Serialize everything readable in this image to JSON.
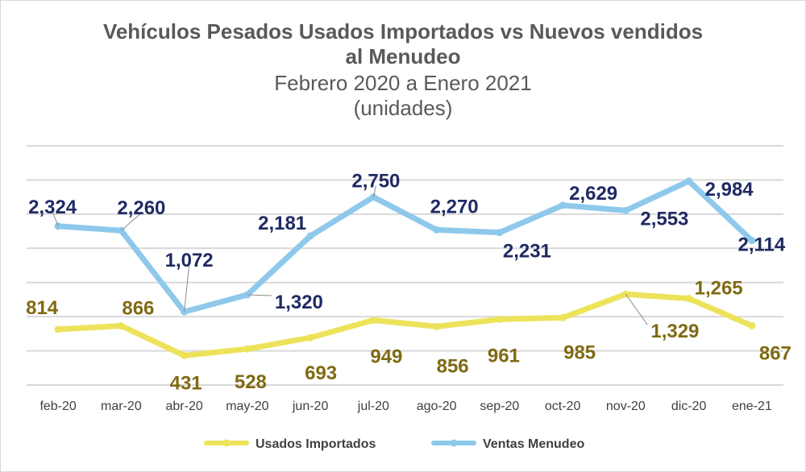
{
  "chart_data": {
    "type": "line",
    "title_line1": "Vehículos Pesados Usados Importados vs Nuevos vendidos",
    "title_line2": "al Menudeo",
    "subtitle": "Febrero 2020 a Enero 2021",
    "units": "(unidades)",
    "categories": [
      "feb-20",
      "mar-20",
      "abr-20",
      "may-20",
      "jun-20",
      "jul-20",
      "ago-20",
      "sep-20",
      "oct-20",
      "nov-20",
      "dic-20",
      "ene-21"
    ],
    "ylim": [
      0,
      3500
    ],
    "gridlines": true,
    "legend_position": "bottom",
    "series": [
      {
        "name": "Usados Importados",
        "color": "#ede35b",
        "label_color": "#7f6a12",
        "values": [
          814,
          866,
          431,
          528,
          693,
          949,
          856,
          961,
          985,
          1329,
          1265,
          867
        ],
        "labels": [
          "814",
          "866",
          "431",
          "528",
          "693",
          "949",
          "856",
          "961",
          "985",
          "1,329",
          "1,265",
          "867"
        ]
      },
      {
        "name": "Ventas Menudeo",
        "color": "#8ec9ec",
        "label_color": "#1f2a63",
        "values": [
          2324,
          2260,
          1072,
          1320,
          2181,
          2750,
          2270,
          2231,
          2629,
          2553,
          2984,
          2114
        ],
        "labels": [
          "2,324",
          "2,260",
          "1,072",
          "1,320",
          "2,181",
          "2,750",
          "2,270",
          "2,231",
          "2,629",
          "2,553",
          "2,984",
          "2,114"
        ]
      }
    ]
  }
}
